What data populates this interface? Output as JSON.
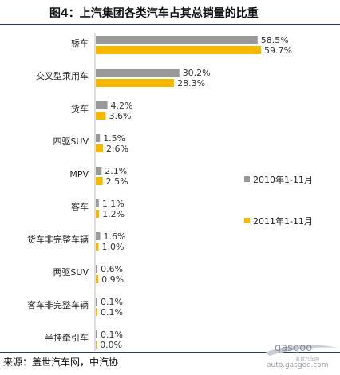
{
  "chart_data": {
    "type": "bar",
    "title": "图4：上汽集团各类汽车占其总销量的比重",
    "categories": [
      "轿车",
      "交叉型乘用车",
      "货车",
      "四驱SUV",
      "MPV",
      "客车",
      "货车非完整车辆",
      "两驱SUV",
      "客车非完整车辆",
      "半挂牵引车"
    ],
    "series": [
      {
        "name": "2010年1-11月",
        "color": "#999999",
        "values": [
          58.5,
          30.2,
          4.2,
          1.5,
          2.1,
          1.1,
          1.6,
          0.6,
          0.1,
          0.1
        ],
        "labels": [
          "58.5%",
          "30.2%",
          "4.2%",
          "1.5%",
          "2.1%",
          "1.1%",
          "1.6%",
          "0.6%",
          "0.1%",
          "0.1%"
        ]
      },
      {
        "name": "2011年1-11月",
        "color": "#f7b800",
        "values": [
          59.7,
          28.3,
          3.6,
          2.6,
          2.5,
          1.2,
          1.0,
          0.9,
          0.1,
          0.0
        ],
        "labels": [
          "59.7%",
          "28.3%",
          "3.6%",
          "2.6%",
          "2.5%",
          "1.2%",
          "1.0%",
          "0.9%",
          "0.1%",
          "0.0%"
        ]
      }
    ],
    "orientation": "horizontal",
    "xlim": [
      0,
      60
    ],
    "legend_position": "right",
    "grid": false
  },
  "source": "来源：盖世汽车网，中汽协",
  "watermark": {
    "brand": "gasgoo",
    "tagline": "盖世汽车网",
    "url": "auto.gasgoo.com"
  }
}
